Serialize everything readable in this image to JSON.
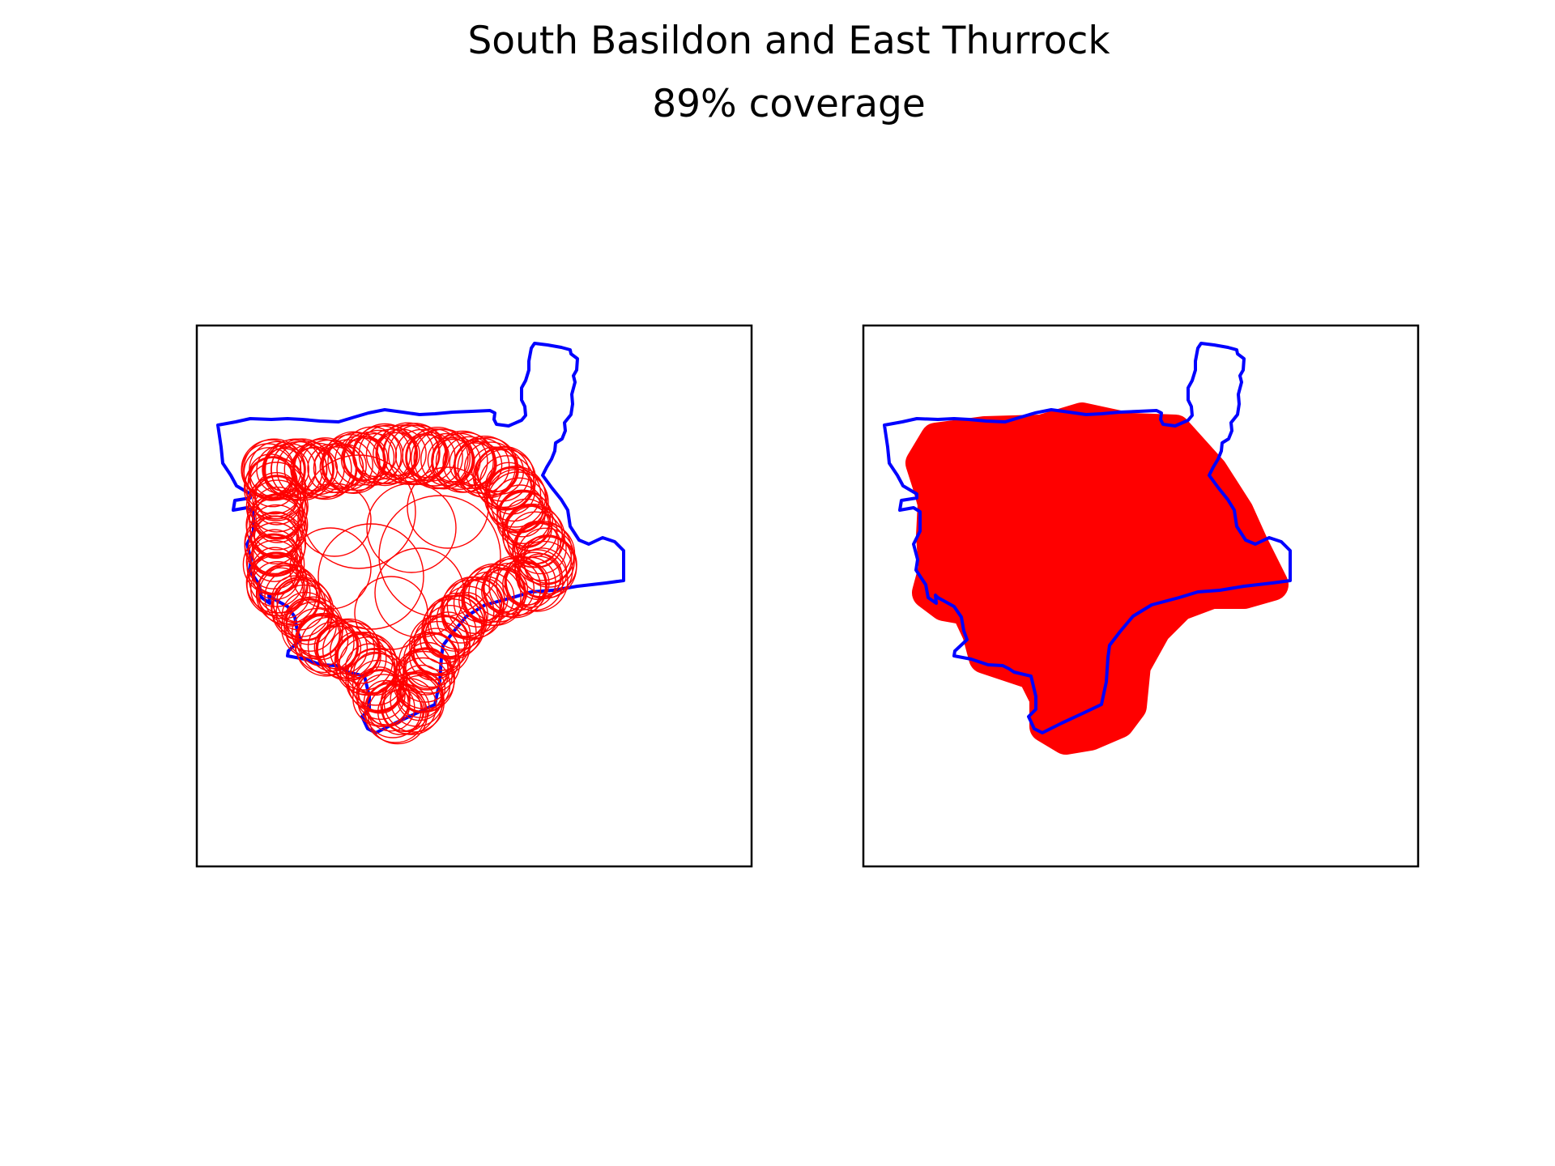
{
  "title": "South Basildon and East Thurrock",
  "subtitle": "89% coverage",
  "colors": {
    "boundary": "#0000ff",
    "coverage": "#ff0000",
    "frame": "#000000",
    "background": "#ffffff"
  },
  "panels": [
    {
      "id": "circles-panel",
      "style": "outlined circles"
    },
    {
      "id": "filled-panel",
      "style": "filled coverage"
    }
  ]
}
